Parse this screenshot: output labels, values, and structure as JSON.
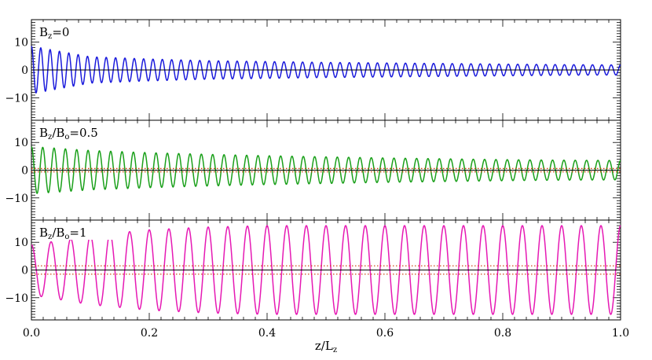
{
  "chart_data": {
    "type": "line",
    "xlabel": "z/L",
    "xlabel_sub": "z",
    "xlim": [
      0.0,
      1.0
    ],
    "x_ticks": [
      "0.0",
      "0.2",
      "0.4",
      "0.6",
      "0.8",
      "1.0"
    ],
    "x_tick_values": [
      0.0,
      0.2,
      0.4,
      0.6,
      0.8,
      1.0
    ],
    "panels": [
      {
        "label_parts": [
          {
            "t": "B",
            "sub": false
          },
          {
            "t": "z",
            "sub": true
          },
          {
            "t": "=0",
            "sub": false
          }
        ],
        "color": "#1a1adc",
        "ylim": [
          -18,
          18
        ],
        "y_ticks": [
          "10",
          "0",
          "−10"
        ],
        "y_tick_values": [
          10,
          0,
          -10
        ],
        "start_amplitude": 8.5,
        "end_amplitude": 1.8,
        "num_cycles": 63,
        "reference_lines": [
          0
        ],
        "dotted_lines": [],
        "x_sampled": [
          0.0,
          0.1,
          0.2,
          0.3,
          0.4,
          0.5,
          0.6,
          0.7,
          0.8,
          0.9,
          1.0
        ],
        "amplitude_sampled": [
          8.5,
          4.7,
          3.9,
          3.3,
          3.0,
          2.7,
          2.5,
          2.3,
          2.1,
          1.9,
          1.8
        ]
      },
      {
        "label_parts": [
          {
            "t": "B",
            "sub": false
          },
          {
            "t": "z",
            "sub": true
          },
          {
            "t": "/B",
            "sub": false
          },
          {
            "t": "o",
            "sub": true
          },
          {
            "t": "=0.5",
            "sub": false
          }
        ],
        "color": "#1aa01a",
        "ylim": [
          -18,
          18
        ],
        "y_ticks": [
          "10",
          "0",
          "−10"
        ],
        "y_tick_values": [
          10,
          0,
          -10
        ],
        "start_amplitude": 8.5,
        "end_amplitude": 3.5,
        "num_cycles": 52,
        "reference_lines": [
          0
        ],
        "dotted_lines": [
          0.6,
          -0.6
        ],
        "x_sampled": [
          0.0,
          0.1,
          0.2,
          0.3,
          0.4,
          0.5,
          0.6,
          0.7,
          0.8,
          0.9,
          1.0
        ],
        "amplitude_sampled": [
          8.5,
          7.1,
          6.3,
          5.7,
          5.2,
          4.8,
          4.4,
          4.1,
          3.8,
          3.6,
          3.5
        ]
      },
      {
        "label_parts": [
          {
            "t": "B",
            "sub": false
          },
          {
            "t": "z",
            "sub": true
          },
          {
            "t": "/B",
            "sub": false
          },
          {
            "t": "o",
            "sub": true
          },
          {
            "t": "=1",
            "sub": false
          }
        ],
        "color": "#e619b4",
        "ylim": [
          -18,
          18
        ],
        "y_ticks": [
          "10",
          "0",
          "−10"
        ],
        "y_tick_values": [
          10,
          0,
          -10
        ],
        "start_amplitude": 9.0,
        "end_amplitude": 16.0,
        "num_cycles": 30,
        "reference_lines": [
          0
        ],
        "dotted_lines": [
          1.5,
          -1.5
        ],
        "x_sampled": [
          0.0,
          0.1,
          0.2,
          0.3,
          0.4,
          0.5,
          0.6,
          0.7,
          0.8,
          0.9,
          1.0
        ],
        "amplitude_sampled": [
          9.0,
          12.5,
          14.5,
          15.5,
          16.0,
          16.0,
          16.0,
          16.0,
          16.0,
          16.0,
          16.0
        ]
      }
    ]
  }
}
